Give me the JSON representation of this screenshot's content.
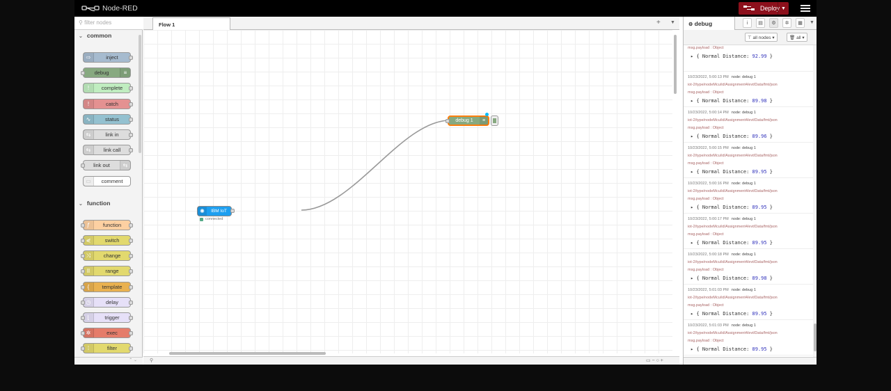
{
  "header": {
    "title": "Node-RED",
    "deploy_label": "Deploy"
  },
  "palette": {
    "search_placeholder": "filter nodes",
    "categories": [
      {
        "name": "common",
        "nodes": [
          {
            "label": "inject",
            "color": "#a6bbcf",
            "icon": "arrow-icon"
          },
          {
            "label": "debug",
            "color": "#87a980",
            "icon": "list-icon"
          },
          {
            "label": "complete",
            "color": "#c0edc0",
            "icon": "exclaim-icon"
          },
          {
            "label": "catch",
            "color": "#e49191",
            "icon": "exclaim-icon"
          },
          {
            "label": "status",
            "color": "#94c1d0",
            "icon": "pulse-icon"
          },
          {
            "label": "link in",
            "color": "#dddddd",
            "icon": "link-icon"
          },
          {
            "label": "link call",
            "color": "#dddddd",
            "icon": "link-icon"
          },
          {
            "label": "link out",
            "color": "#dddddd",
            "icon": "link-icon"
          },
          {
            "label": "comment",
            "color": "#ffffff",
            "icon": "comment-icon"
          }
        ]
      },
      {
        "name": "function",
        "nodes": [
          {
            "label": "function",
            "color": "#fdd0a2",
            "icon": "function-icon"
          },
          {
            "label": "switch",
            "color": "#e2d96e",
            "icon": "switch-icon"
          },
          {
            "label": "change",
            "color": "#e2d96e",
            "icon": "shuffle-icon"
          },
          {
            "label": "range",
            "color": "#e2d96e",
            "icon": "range-icon"
          },
          {
            "label": "template",
            "color": "#e9b150",
            "icon": "template-icon"
          },
          {
            "label": "delay",
            "color": "#e6e0f8",
            "icon": "clock-icon"
          },
          {
            "label": "trigger",
            "color": "#e6e0f8",
            "icon": "trigger-icon"
          },
          {
            "label": "exec",
            "color": "#e57c6a",
            "icon": "gear-icon"
          },
          {
            "label": "filter",
            "color": "#e2d96e",
            "icon": "filter-icon"
          }
        ]
      }
    ]
  },
  "workspace": {
    "tab_label": "Flow 1",
    "nodes": {
      "debug": {
        "label": "debug 1"
      },
      "ibm": {
        "label": "IBM IoT",
        "status": "connected"
      }
    }
  },
  "sidebar": {
    "tab_label": "debug",
    "filter_nodes_label": "all nodes",
    "filter_all_label": "all",
    "partial_first": {
      "topic": "iot-2/type/nodeMcu/id/Assignment4/evt/Data/fmt/json",
      "type": "msg.payload : Object",
      "value_prefix": "{ Normal Distance: ",
      "value": "92.99",
      "value_suffix": " }"
    },
    "messages": [
      {
        "time": "10/23/2022, 5:00:13 PM",
        "node": "node: debug 1",
        "topic": "iot-2/type/nodeMcu/id/Assignment4/evt/Data/fmt/json",
        "type": "msg.payload : Object",
        "value_prefix": "{ Normal Distance: ",
        "value": "89.98",
        "value_suffix": " }"
      },
      {
        "time": "10/23/2022, 5:00:14 PM",
        "node": "node: debug 1",
        "topic": "iot-2/type/nodeMcu/id/Assignment4/evt/Data/fmt/json",
        "type": "msg.payload : Object",
        "value_prefix": "{ Normal Distance: ",
        "value": "89.96",
        "value_suffix": " }"
      },
      {
        "time": "10/23/2022, 5:00:15 PM",
        "node": "node: debug 1",
        "topic": "iot-2/type/nodeMcu/id/Assignment4/evt/Data/fmt/json",
        "type": "msg.payload : Object",
        "value_prefix": "{ Normal Distance: ",
        "value": "89.95",
        "value_suffix": " }"
      },
      {
        "time": "10/23/2022, 5:00:16 PM",
        "node": "node: debug 1",
        "topic": "iot-2/type/nodeMcu/id/Assignment4/evt/Data/fmt/json",
        "type": "msg.payload : Object",
        "value_prefix": "{ Normal Distance: ",
        "value": "89.95",
        "value_suffix": " }"
      },
      {
        "time": "10/23/2022, 5:00:17 PM",
        "node": "node: debug 1",
        "topic": "iot-2/type/nodeMcu/id/Assignment4/evt/Data/fmt/json",
        "type": "msg.payload : Object",
        "value_prefix": "{ Normal Distance: ",
        "value": "89.95",
        "value_suffix": " }"
      },
      {
        "time": "10/23/2022, 5:00:18 PM",
        "node": "node: debug 1",
        "topic": "iot-2/type/nodeMcu/id/Assignment4/evt/Data/fmt/json",
        "type": "msg.payload : Object",
        "value_prefix": "{ Normal Distance: ",
        "value": "89.98",
        "value_suffix": " }"
      },
      {
        "time": "10/23/2022, 5:01:03 PM",
        "node": "node: debug 1",
        "topic": "iot-2/type/nodeMcu/id/Assignment4/evt/Data/fmt/json",
        "type": "msg.payload : Object",
        "value_prefix": "{ Normal Distance: ",
        "value": "89.95",
        "value_suffix": " }"
      },
      {
        "time": "10/23/2022, 5:01:03 PM",
        "node": "node: debug 1",
        "topic": "iot-2/type/nodeMcu/id/Assignment4/evt/Data/fmt/json",
        "type": "msg.payload : Object",
        "value_prefix": "{ Normal Distance: ",
        "value": "89.95",
        "value_suffix": " }"
      }
    ]
  }
}
